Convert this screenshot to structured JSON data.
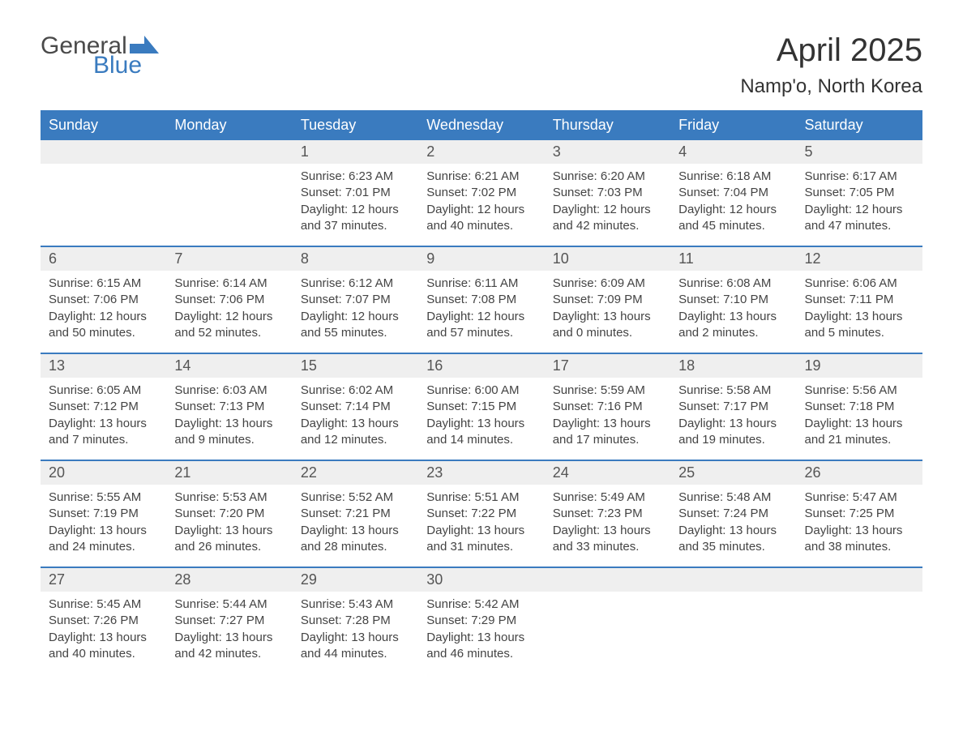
{
  "logo": {
    "text1": "General",
    "text2": "Blue"
  },
  "title": "April 2025",
  "location": "Namp'o, North Korea",
  "colors": {
    "header_bg": "#3a7bbf",
    "header_text": "#ffffff",
    "daynum_bg": "#efefef",
    "border": "#3a7bbf",
    "body_text": "#444444"
  },
  "day_headers": [
    "Sunday",
    "Monday",
    "Tuesday",
    "Wednesday",
    "Thursday",
    "Friday",
    "Saturday"
  ],
  "weeks": [
    [
      {
        "empty": true
      },
      {
        "empty": true
      },
      {
        "n": "1",
        "sunrise": "6:23 AM",
        "sunset": "7:01 PM",
        "dl": "12 hours and 37 minutes."
      },
      {
        "n": "2",
        "sunrise": "6:21 AM",
        "sunset": "7:02 PM",
        "dl": "12 hours and 40 minutes."
      },
      {
        "n": "3",
        "sunrise": "6:20 AM",
        "sunset": "7:03 PM",
        "dl": "12 hours and 42 minutes."
      },
      {
        "n": "4",
        "sunrise": "6:18 AM",
        "sunset": "7:04 PM",
        "dl": "12 hours and 45 minutes."
      },
      {
        "n": "5",
        "sunrise": "6:17 AM",
        "sunset": "7:05 PM",
        "dl": "12 hours and 47 minutes."
      }
    ],
    [
      {
        "n": "6",
        "sunrise": "6:15 AM",
        "sunset": "7:06 PM",
        "dl": "12 hours and 50 minutes."
      },
      {
        "n": "7",
        "sunrise": "6:14 AM",
        "sunset": "7:06 PM",
        "dl": "12 hours and 52 minutes."
      },
      {
        "n": "8",
        "sunrise": "6:12 AM",
        "sunset": "7:07 PM",
        "dl": "12 hours and 55 minutes."
      },
      {
        "n": "9",
        "sunrise": "6:11 AM",
        "sunset": "7:08 PM",
        "dl": "12 hours and 57 minutes."
      },
      {
        "n": "10",
        "sunrise": "6:09 AM",
        "sunset": "7:09 PM",
        "dl": "13 hours and 0 minutes."
      },
      {
        "n": "11",
        "sunrise": "6:08 AM",
        "sunset": "7:10 PM",
        "dl": "13 hours and 2 minutes."
      },
      {
        "n": "12",
        "sunrise": "6:06 AM",
        "sunset": "7:11 PM",
        "dl": "13 hours and 5 minutes."
      }
    ],
    [
      {
        "n": "13",
        "sunrise": "6:05 AM",
        "sunset": "7:12 PM",
        "dl": "13 hours and 7 minutes."
      },
      {
        "n": "14",
        "sunrise": "6:03 AM",
        "sunset": "7:13 PM",
        "dl": "13 hours and 9 minutes."
      },
      {
        "n": "15",
        "sunrise": "6:02 AM",
        "sunset": "7:14 PM",
        "dl": "13 hours and 12 minutes."
      },
      {
        "n": "16",
        "sunrise": "6:00 AM",
        "sunset": "7:15 PM",
        "dl": "13 hours and 14 minutes."
      },
      {
        "n": "17",
        "sunrise": "5:59 AM",
        "sunset": "7:16 PM",
        "dl": "13 hours and 17 minutes."
      },
      {
        "n": "18",
        "sunrise": "5:58 AM",
        "sunset": "7:17 PM",
        "dl": "13 hours and 19 minutes."
      },
      {
        "n": "19",
        "sunrise": "5:56 AM",
        "sunset": "7:18 PM",
        "dl": "13 hours and 21 minutes."
      }
    ],
    [
      {
        "n": "20",
        "sunrise": "5:55 AM",
        "sunset": "7:19 PM",
        "dl": "13 hours and 24 minutes."
      },
      {
        "n": "21",
        "sunrise": "5:53 AM",
        "sunset": "7:20 PM",
        "dl": "13 hours and 26 minutes."
      },
      {
        "n": "22",
        "sunrise": "5:52 AM",
        "sunset": "7:21 PM",
        "dl": "13 hours and 28 minutes."
      },
      {
        "n": "23",
        "sunrise": "5:51 AM",
        "sunset": "7:22 PM",
        "dl": "13 hours and 31 minutes."
      },
      {
        "n": "24",
        "sunrise": "5:49 AM",
        "sunset": "7:23 PM",
        "dl": "13 hours and 33 minutes."
      },
      {
        "n": "25",
        "sunrise": "5:48 AM",
        "sunset": "7:24 PM",
        "dl": "13 hours and 35 minutes."
      },
      {
        "n": "26",
        "sunrise": "5:47 AM",
        "sunset": "7:25 PM",
        "dl": "13 hours and 38 minutes."
      }
    ],
    [
      {
        "n": "27",
        "sunrise": "5:45 AM",
        "sunset": "7:26 PM",
        "dl": "13 hours and 40 minutes."
      },
      {
        "n": "28",
        "sunrise": "5:44 AM",
        "sunset": "7:27 PM",
        "dl": "13 hours and 42 minutes."
      },
      {
        "n": "29",
        "sunrise": "5:43 AM",
        "sunset": "7:28 PM",
        "dl": "13 hours and 44 minutes."
      },
      {
        "n": "30",
        "sunrise": "5:42 AM",
        "sunset": "7:29 PM",
        "dl": "13 hours and 46 minutes."
      },
      {
        "empty": true
      },
      {
        "empty": true
      },
      {
        "empty": true
      }
    ]
  ],
  "labels": {
    "sunrise": "Sunrise: ",
    "sunset": "Sunset: ",
    "daylight": "Daylight: "
  }
}
